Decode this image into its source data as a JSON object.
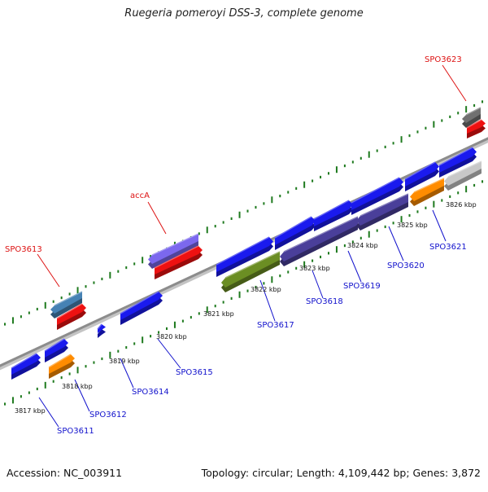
{
  "title": "Ruegeria pomeroyi DSS-3, complete genome",
  "footer": {
    "accession": "Accession: NC_003911",
    "summary": "Topology: circular; Length: 4,109,442 bp; Genes: 3,872"
  },
  "scale_labels": [
    "3817 kbp",
    "3818 kbp",
    "3819 kbp",
    "3820 kbp",
    "3821 kbp",
    "3822 kbp",
    "3823 kbp",
    "3824 kbp",
    "3825 kbp",
    "3826 kbp"
  ],
  "gene_labels": [
    {
      "text": "SPO3613",
      "strand": "forward",
      "color": "#dd1111"
    },
    {
      "text": "accA",
      "strand": "forward",
      "color": "#dd1111"
    },
    {
      "text": "SPO3623",
      "strand": "forward",
      "color": "#dd1111"
    },
    {
      "text": "SPO3611",
      "strand": "reverse",
      "color": "#1111cc"
    },
    {
      "text": "SPO3612",
      "strand": "reverse",
      "color": "#1111cc"
    },
    {
      "text": "SPO3614",
      "strand": "reverse",
      "color": "#1111cc"
    },
    {
      "text": "SPO3615",
      "strand": "reverse",
      "color": "#1111cc"
    },
    {
      "text": "SPO3617",
      "strand": "reverse",
      "color": "#1111cc"
    },
    {
      "text": "SPO3618",
      "strand": "reverse",
      "color": "#1111cc"
    },
    {
      "text": "SPO3619",
      "strand": "reverse",
      "color": "#1111cc"
    },
    {
      "text": "SPO3620",
      "strand": "reverse",
      "color": "#1111cc"
    },
    {
      "text": "SPO3621",
      "strand": "reverse",
      "color": "#1111cc"
    }
  ],
  "colors": {
    "backbone": "#8c8c8c",
    "ticks": "#1e7a1e",
    "cds_blue": "#1a1aee",
    "rna_red": "#ee1111",
    "orange": "#ff8c00",
    "olive": "#6b8e23",
    "slate": "#4a3f9a",
    "lavender": "#7b68ee",
    "steel": "#4682b4",
    "gray": "#707070",
    "silver": "#c8c8c8"
  }
}
